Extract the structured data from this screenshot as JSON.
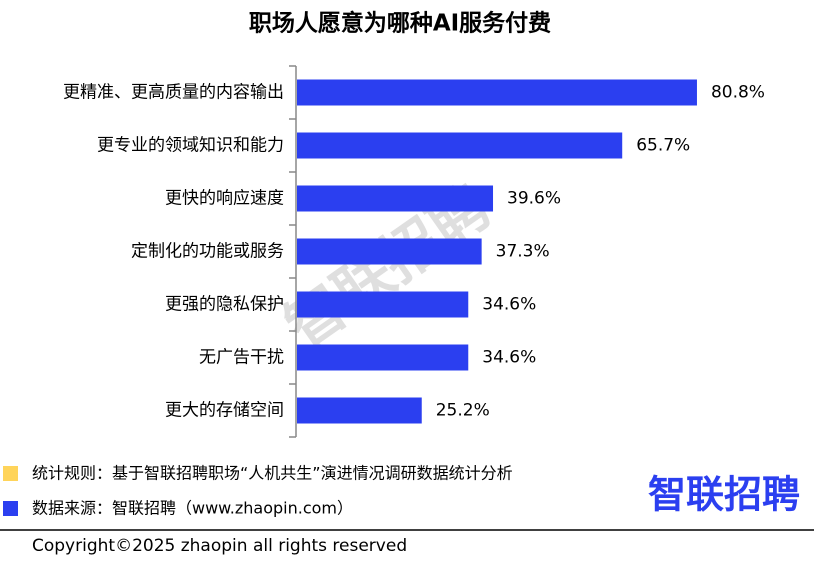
{
  "chart_data": {
    "type": "bar",
    "orientation": "horizontal",
    "title": "职场人愿意为哪种AI服务付费",
    "categories": [
      "更精准、更高质量的内容输出",
      "更专业的领域知识和能力",
      "更快的响应速度",
      "定制化的功能或服务",
      "更强的隐私保护",
      "无广告干扰",
      "更大的存储空间"
    ],
    "values": [
      80.8,
      65.7,
      39.6,
      37.3,
      34.6,
      34.6,
      25.2
    ],
    "value_labels": [
      "80.8%",
      "65.7%",
      "39.6%",
      "37.3%",
      "34.6%",
      "34.6%",
      "25.2%"
    ],
    "color": "#2b3ff0"
  },
  "watermark": "智联招聘",
  "notes": [
    {
      "text": "统计规则：基于智联招聘职场“人机共生”演进情况调研数据统计分析",
      "color": "#ffd45a"
    },
    {
      "text": "数据来源：智联招聘（www.zhaopin.com）",
      "color": "#2b3ff0"
    }
  ],
  "logo": "智联招聘",
  "copyright": "Copyright©2025 zhaopin all rights reserved"
}
